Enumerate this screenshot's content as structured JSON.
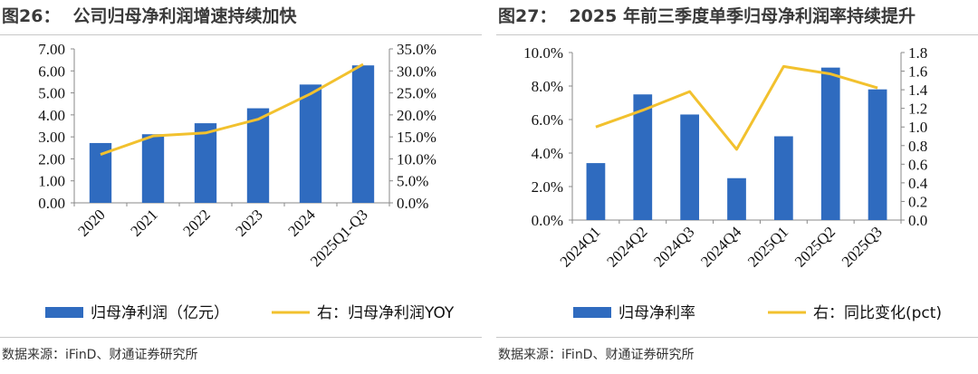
{
  "left": {
    "title_num": "图26：",
    "title_text": "公司归母净利润增速持续加快",
    "source": "数据来源：iFinD、财通证券研究所"
  },
  "right": {
    "title_num": "图27：",
    "title_text": "2025 年前三季度单季归母净利润率持续提升",
    "source": "数据来源：iFinD、财通证券研究所"
  },
  "chart_data": [
    {
      "type": "bar",
      "title": "公司归母净利润增速持续加快",
      "categories": [
        "2020",
        "2021",
        "2022",
        "2023",
        "2024",
        "2025Q1-Q3"
      ],
      "series": [
        {
          "name": "归母净利润（亿元）",
          "type": "bar",
          "axis": "left",
          "values": [
            2.72,
            3.12,
            3.62,
            4.3,
            5.38,
            6.25
          ]
        },
        {
          "name": "右：归母净利润YOY",
          "type": "line",
          "axis": "right",
          "values": [
            11.0,
            15.2,
            15.9,
            19.0,
            24.8,
            31.5
          ]
        }
      ],
      "y_left": {
        "min": 0,
        "max": 7,
        "step": 1,
        "tick_labels": [
          "0.00",
          "1.00",
          "2.00",
          "3.00",
          "4.00",
          "5.00",
          "6.00",
          "7.00"
        ]
      },
      "y_right": {
        "min": 0,
        "max": 35,
        "step": 5,
        "tick_labels": [
          "0.0%",
          "5.0%",
          "10.0%",
          "15.0%",
          "20.0%",
          "25.0%",
          "30.0%",
          "35.0%"
        ]
      },
      "legend": [
        "归母净利润（亿元）",
        "右：归母净利润YOY"
      ],
      "legend_position": "bottom",
      "colors": {
        "bar": "#2f6bbf",
        "line": "#f2c12e",
        "axis": "#888888"
      }
    },
    {
      "type": "bar",
      "title": "2025 年前三季度单季归母净利润率持续提升",
      "categories": [
        "2024Q1",
        "2024Q2",
        "2024Q3",
        "2024Q4",
        "2025Q1",
        "2025Q2",
        "2025Q3"
      ],
      "series": [
        {
          "name": "归母净利率",
          "type": "bar",
          "axis": "left",
          "values": [
            3.4,
            7.5,
            6.3,
            2.5,
            5.0,
            9.1,
            7.8
          ]
        },
        {
          "name": "右：同比变化(pct)",
          "type": "line",
          "axis": "right",
          "values": [
            1.0,
            1.18,
            1.38,
            0.76,
            1.65,
            1.57,
            1.42
          ]
        }
      ],
      "y_left": {
        "min": 0,
        "max": 10,
        "step": 2,
        "tick_labels": [
          "0.0%",
          "2.0%",
          "4.0%",
          "6.0%",
          "8.0%",
          "10.0%"
        ]
      },
      "y_right": {
        "min": 0,
        "max": 1.8,
        "step": 0.2,
        "tick_labels": [
          "0.0",
          "0.2",
          "0.4",
          "0.6",
          "0.8",
          "1.0",
          "1.2",
          "1.4",
          "1.6",
          "1.8"
        ]
      },
      "legend": [
        "归母净利率",
        "右：同比变化(pct)"
      ],
      "legend_position": "bottom",
      "colors": {
        "bar": "#2f6bbf",
        "line": "#f2c12e",
        "axis": "#888888"
      }
    }
  ]
}
